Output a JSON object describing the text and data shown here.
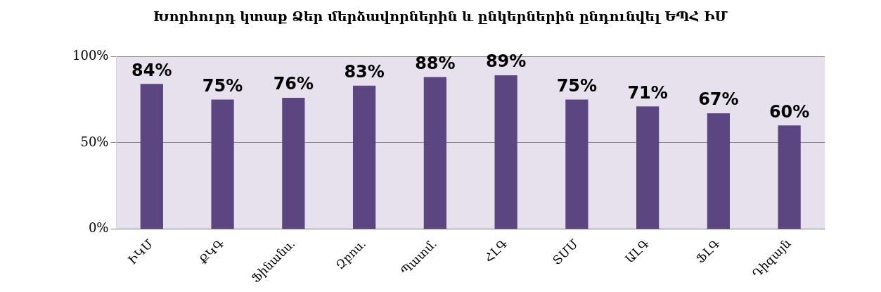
{
  "chart_data": {
    "type": "bar",
    "title": "Խորհուրդ կտաք Ձեր մերձավորներին և ընկերներին ընդունվել ԵՊՀ ԻՄ",
    "categories": [
      "ԻԿՄ",
      "ՔԿԳ",
      "Ֆինանս.",
      "Զբոս.",
      "Պատմ.",
      "ՀԼԳ",
      "ՏՄՄ",
      "ԱԼԳ",
      "ՖԼԳ",
      "Դիզայն"
    ],
    "values": [
      84,
      75,
      76,
      83,
      88,
      89,
      75,
      71,
      67,
      60
    ],
    "color": "#5b4682",
    "ylim": [
      0,
      100
    ],
    "yticks": [
      {
        "value": 0,
        "label": "0%"
      },
      {
        "value": 50,
        "label": "50%"
      },
      {
        "value": 100,
        "label": "100%"
      }
    ],
    "value_labels": [
      "84%",
      "75%",
      "76%",
      "83%",
      "88%",
      "89%",
      "75%",
      "71%",
      "67%",
      "60%"
    ],
    "grid": "y",
    "legend": false
  }
}
